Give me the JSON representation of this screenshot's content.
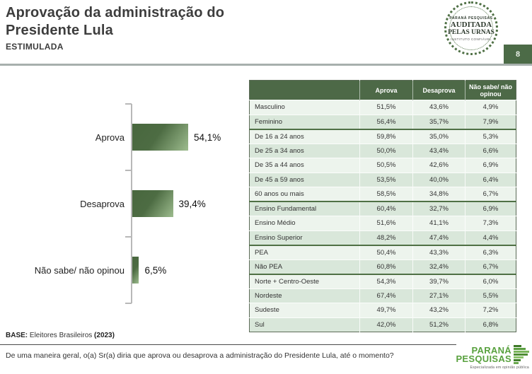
{
  "header": {
    "title_line1": "Aprovação da administração do",
    "title_line2": "Presidente Lula",
    "subtitle": "ESTIMULADA",
    "page_number": "8"
  },
  "seal": {
    "line1": "PARANÁ PESQUISAS",
    "line2": "AUDITADA",
    "line3": "PELAS URNAS",
    "line4": "INSTITUTO CONFIÁVEL"
  },
  "footer": {
    "base_label": "BASE:",
    "base_text": " Eleitores Brasileiros ",
    "base_year": "(2023)",
    "question": "De uma maneira geral, o(a) Sr(a) diria que aprova ou desaprova a administração do Presidente Lula, até o momento?"
  },
  "footer_logo": {
    "name_line1": "PARANÁ",
    "name_line2": "PESQUISAS",
    "tagline": "Especializada em opinião pública"
  },
  "colors": {
    "dark_green": "#4c6b47",
    "row_light": "#edf4ed",
    "row_dark": "#d9e7da",
    "bar_dark": "#48673e",
    "bar_light": "#9dbc8e",
    "logo_green": "#58a13e"
  },
  "chart_data": [
    {
      "type": "bar",
      "orientation": "horizontal",
      "title": "Aprovação da administração do Presidente Lula — ESTIMULADA",
      "categories": [
        "Aprova",
        "Desaprova",
        "Não sabe/ não opinou"
      ],
      "values": [
        54.1,
        39.4,
        6.5
      ],
      "value_labels": [
        "54,1%",
        "39,4%",
        "6,5%"
      ],
      "xlim": [
        0,
        100
      ],
      "grid": false,
      "legend": false
    },
    {
      "type": "table",
      "columns": [
        "Aprova",
        "Desaprova",
        "Não sabe/ não opinou"
      ],
      "groups": [
        {
          "rows": [
            {
              "label": "Masculino",
              "values": [
                "51,5%",
                "43,6%",
                "4,9%"
              ]
            },
            {
              "label": "Feminino",
              "values": [
                "56,4%",
                "35,7%",
                "7,9%"
              ]
            }
          ]
        },
        {
          "rows": [
            {
              "label": "De 16 a 24 anos",
              "values": [
                "59,8%",
                "35,0%",
                "5,3%"
              ]
            },
            {
              "label": "De 25 a 34 anos",
              "values": [
                "50,0%",
                "43,4%",
                "6,6%"
              ]
            },
            {
              "label": "De 35 a 44 anos",
              "values": [
                "50,5%",
                "42,6%",
                "6,9%"
              ]
            },
            {
              "label": "De 45 a 59 anos",
              "values": [
                "53,5%",
                "40,0%",
                "6,4%"
              ]
            },
            {
              "label": "60 anos ou mais",
              "values": [
                "58,5%",
                "34,8%",
                "6,7%"
              ]
            }
          ]
        },
        {
          "rows": [
            {
              "label": "Ensino Fundamental",
              "values": [
                "60,4%",
                "32,7%",
                "6,9%"
              ]
            },
            {
              "label": "Ensino Médio",
              "values": [
                "51,6%",
                "41,1%",
                "7,3%"
              ]
            },
            {
              "label": "Ensino Superior",
              "values": [
                "48,2%",
                "47,4%",
                "4,4%"
              ]
            }
          ]
        },
        {
          "rows": [
            {
              "label": "PEA",
              "values": [
                "50,4%",
                "43,3%",
                "6,3%"
              ]
            },
            {
              "label": "Não PEA",
              "values": [
                "60,8%",
                "32,4%",
                "6,7%"
              ]
            }
          ]
        },
        {
          "rows": [
            {
              "label": "Norte + Centro-Oeste",
              "values": [
                "54,3%",
                "39,7%",
                "6,0%"
              ]
            },
            {
              "label": "Nordeste",
              "values": [
                "67,4%",
                "27,1%",
                "5,5%"
              ]
            },
            {
              "label": "Sudeste",
              "values": [
                "49,7%",
                "43,2%",
                "7,2%"
              ]
            },
            {
              "label": "Sul",
              "values": [
                "42,0%",
                "51,2%",
                "6,8%"
              ]
            }
          ]
        }
      ]
    }
  ]
}
